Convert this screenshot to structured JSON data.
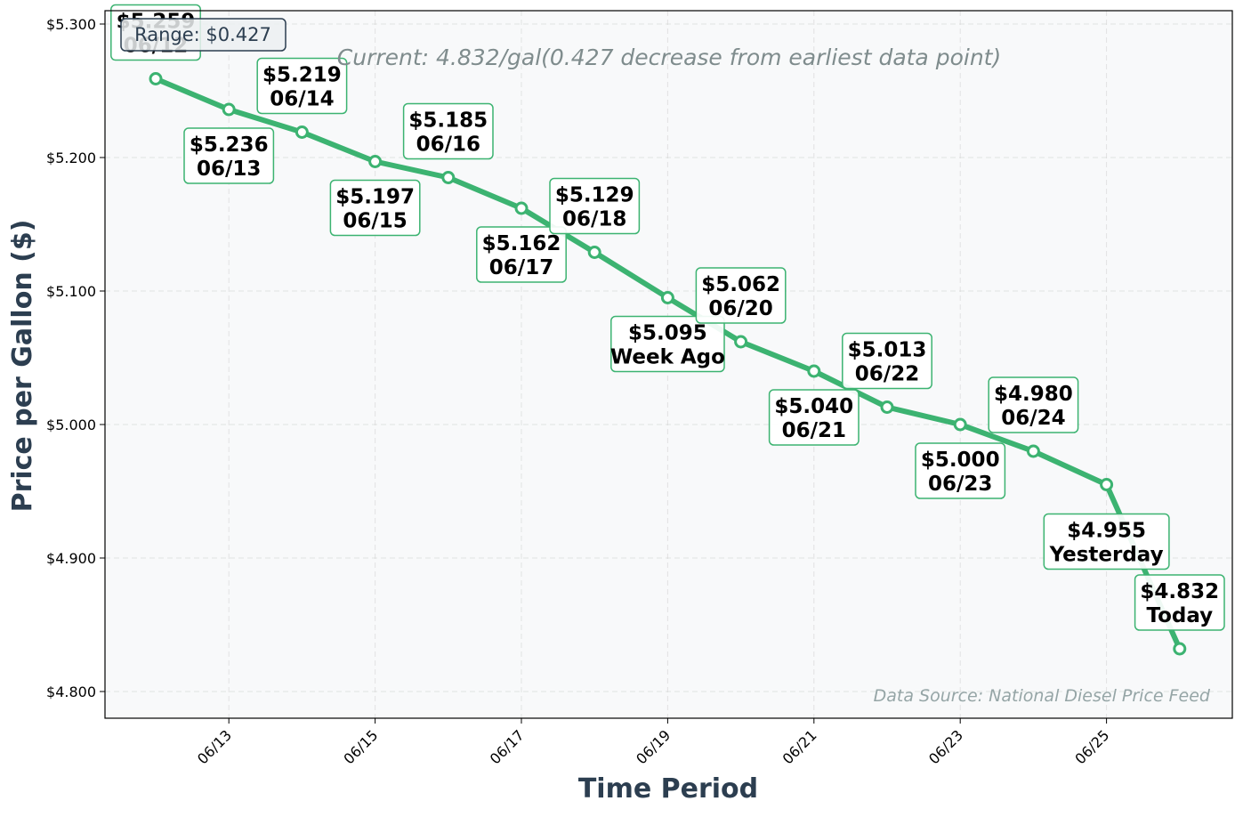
{
  "chart_data": {
    "type": "line",
    "xlabel": "Time Period",
    "ylabel": "Price per Gallon ($)",
    "x_tick_labels": [
      "06/13",
      "06/15",
      "06/17",
      "06/19",
      "06/21",
      "06/23",
      "06/25"
    ],
    "y_tick_labels": [
      "$4.800",
      "$4.900",
      "$5.000",
      "$5.100",
      "$5.200",
      "$5.300"
    ],
    "ylim": [
      4.78,
      5.31
    ],
    "grid": true,
    "series": [
      {
        "x": [
          "06/12",
          "06/13",
          "06/14",
          "06/15",
          "06/16",
          "06/17",
          "06/18",
          "06/19",
          "06/20",
          "06/21",
          "06/22",
          "06/23",
          "06/24",
          "06/25",
          "06/26"
        ],
        "values": [
          5.259,
          5.236,
          5.219,
          5.197,
          5.185,
          5.162,
          5.129,
          5.095,
          5.062,
          5.04,
          5.013,
          5.0,
          4.98,
          4.955,
          4.832
        ]
      }
    ],
    "point_labels": [
      {
        "price": "$5.259",
        "label": "06/12"
      },
      {
        "price": "$5.236",
        "label": "06/13"
      },
      {
        "price": "$5.219",
        "label": "06/14"
      },
      {
        "price": "$5.197",
        "label": "06/15"
      },
      {
        "price": "$5.185",
        "label": "06/16"
      },
      {
        "price": "$5.162",
        "label": "06/17"
      },
      {
        "price": "$5.129",
        "label": "06/18"
      },
      {
        "price": "$5.095",
        "label": "Week Ago"
      },
      {
        "price": "$5.062",
        "label": "06/20"
      },
      {
        "price": "$5.040",
        "label": "06/21"
      },
      {
        "price": "$5.013",
        "label": "06/22"
      },
      {
        "price": "$5.000",
        "label": "06/23"
      },
      {
        "price": "$4.980",
        "label": "06/24"
      },
      {
        "price": "$4.955",
        "label": "Yesterday"
      },
      {
        "price": "$4.832",
        "label": "Today"
      }
    ],
    "annotations": {
      "range": "Range: $0.427",
      "current": "Current: 4.832/gal(0.427 decrease from earliest data point)",
      "source": "Data Source: National Diesel Price Feed"
    }
  },
  "colors": {
    "line": "#3cb371",
    "axis_label": "#2c3e50",
    "plot_background": "#f8f9fa",
    "current_text": "#7f8c8d",
    "source_text": "#95a5a6"
  }
}
